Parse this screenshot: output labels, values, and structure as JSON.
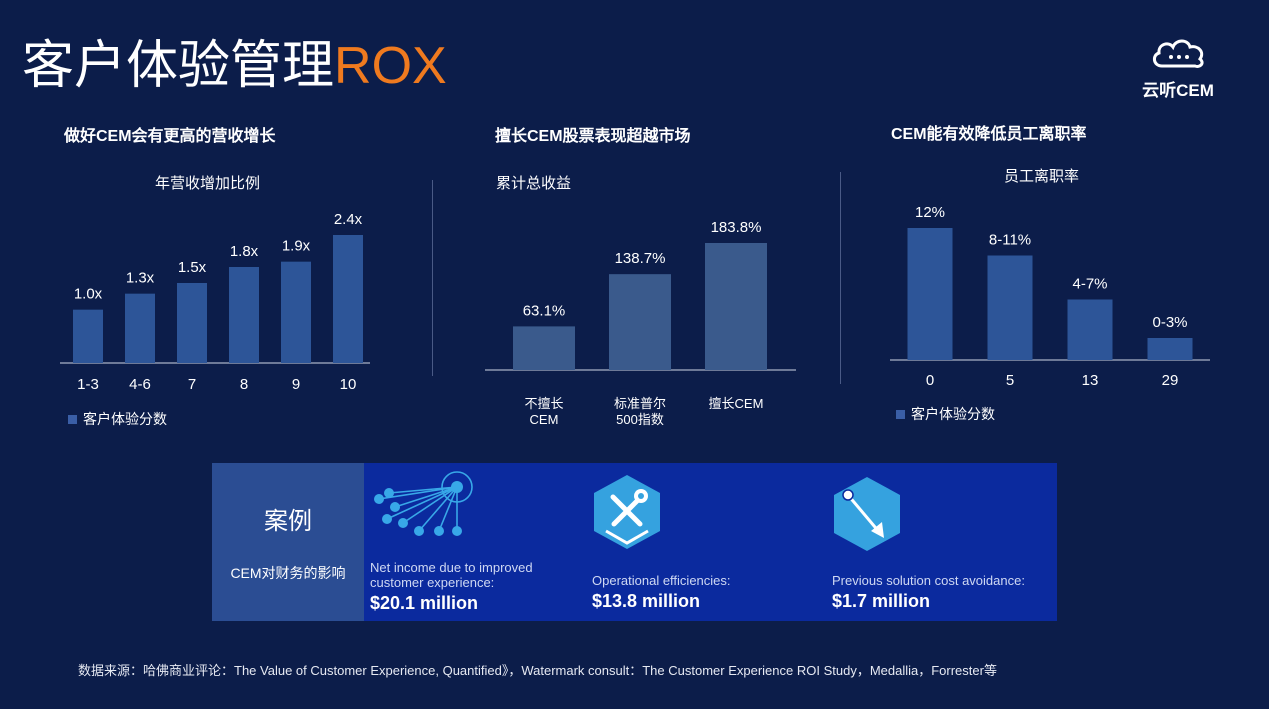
{
  "page": {
    "title_main": "客户体验管理",
    "title_accent": "ROX",
    "logo_text": "云听CEM",
    "footnote": "数据来源：哈佛商业评论：The Value of Customer Experience, Quantified》，Watermark consult：The Customer Experience ROI Study，Medallia，Forrester等"
  },
  "colors": {
    "background": "#0c1d4a",
    "bar": "#2d5598",
    "bar_light": "#3a5a8c",
    "accent": "#ef7a1f",
    "case_panel": "#0b2a9e",
    "case_label": "#2b4d93"
  },
  "chart_data": [
    {
      "type": "bar",
      "title": "做好CEM会有更高的营收增长",
      "subtitle": "年营收增加比例",
      "categories": [
        "1-3",
        "4-6",
        "7",
        "8",
        "9",
        "10"
      ],
      "values": [
        1.0,
        1.3,
        1.5,
        1.8,
        1.9,
        2.4
      ],
      "data_labels": [
        "1.0x",
        "1.3x",
        "1.5x",
        "1.8x",
        "1.9x",
        "2.4x"
      ],
      "ylim": [
        0,
        2.4
      ],
      "legend": "客户体验分数",
      "legend_position": "bottom-left",
      "grid": false
    },
    {
      "type": "bar",
      "title": "擅长CEM股票表现超越市场",
      "subtitle": "累计总收益",
      "categories": [
        "不擅长\nCEM",
        "标准普尔\n500指数",
        "擅长CEM"
      ],
      "values": [
        63.1,
        138.7,
        183.8
      ],
      "data_labels": [
        "63.1%",
        "138.7%",
        "183.8%"
      ],
      "ylim": [
        0,
        183.8
      ],
      "grid": false
    },
    {
      "type": "bar",
      "title": "CEM能有效降低员工离职率",
      "subtitle": "员工离职率",
      "categories": [
        "0",
        "5",
        "13",
        "29"
      ],
      "values": [
        12,
        9.5,
        5.5,
        2
      ],
      "data_labels": [
        "12%",
        "8-11%",
        "4-7%",
        "0-3%"
      ],
      "ylim": [
        0,
        12
      ],
      "legend": "客户体验分数",
      "legend_position": "bottom-left",
      "grid": false
    }
  ],
  "case": {
    "title": "案例",
    "subtitle": "CEM对财务的影响",
    "items": [
      {
        "icon": "network-icon",
        "desc": "Net income due to improved customer experience:",
        "value": "$20.1 million"
      },
      {
        "icon": "tools-icon",
        "desc": "Operational efficiencies:",
        "value": "$13.8 million"
      },
      {
        "icon": "arrow-icon",
        "desc": "Previous solution cost avoidance:",
        "value": "$1.7 million"
      }
    ]
  }
}
